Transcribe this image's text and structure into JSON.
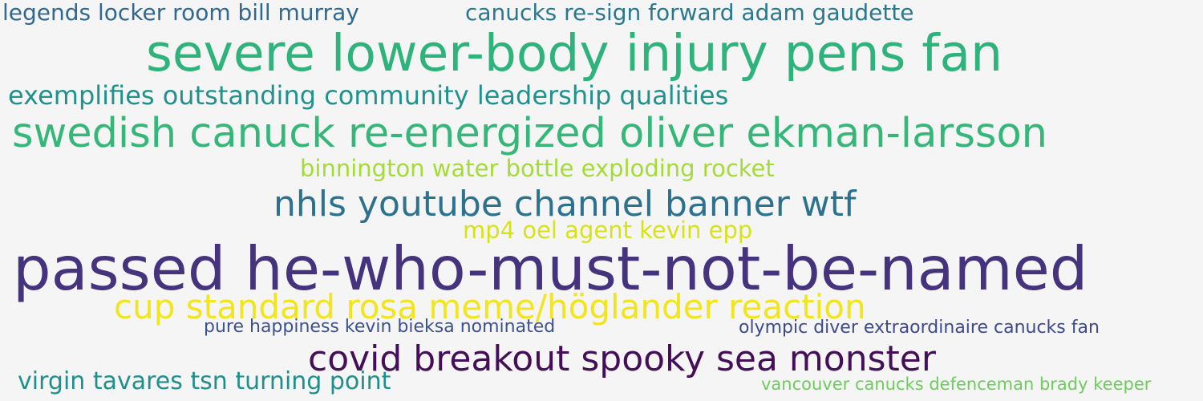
{
  "words": [
    {
      "id": "w01",
      "text": "legends locker room bill murray",
      "color": "#31688e"
    },
    {
      "id": "w02",
      "text": "canucks re-sign forward adam gaudette",
      "color": "#2a788e"
    },
    {
      "id": "w03",
      "text": "severe lower-body injury pens fan",
      "color": "#2eb37c"
    },
    {
      "id": "w04",
      "text": "exemplifies outstanding community leadership qualities",
      "color": "#21918c"
    },
    {
      "id": "w05",
      "text": "swedish canuck re-energized oliver ekman-larsson",
      "color": "#35b779"
    },
    {
      "id": "w06",
      "text": "binnington water bottle exploding rocket",
      "color": "#a5db36"
    },
    {
      "id": "w07",
      "text": "nhls youtube channel banner wtf",
      "color": "#2c728e"
    },
    {
      "id": "w08",
      "text": "mp4 oel agent kevin epp",
      "color": "#d8e219"
    },
    {
      "id": "w09",
      "text": "passed he-who-must-not-be-named",
      "color": "#46337e"
    },
    {
      "id": "w10",
      "text": "cup standard rosa meme/höglander reaction",
      "color": "#f2e51d"
    },
    {
      "id": "w11",
      "text": "pure happiness kevin bieksa nominated",
      "color": "#3b528b"
    },
    {
      "id": "w12",
      "text": "olympic diver extraordinaire canucks fan",
      "color": "#3e4a89"
    },
    {
      "id": "w13",
      "text": "covid breakout spooky sea monster",
      "color": "#440f58"
    },
    {
      "id": "w14",
      "text": "virgin tavares tsn turning point",
      "color": "#1f8f8c"
    },
    {
      "id": "w15",
      "text": "vancouver canucks defenceman brady keeper",
      "color": "#6ccd5a"
    }
  ]
}
